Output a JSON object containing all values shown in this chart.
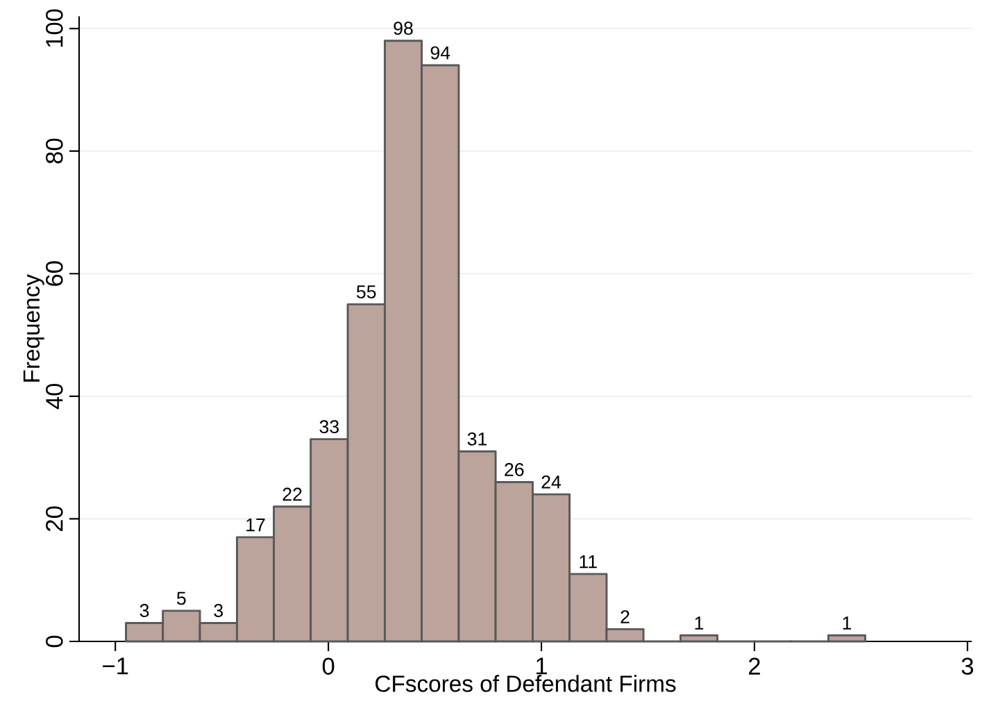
{
  "chart_data": {
    "type": "histogram",
    "xlabel": "CFscores of Defendant Firms",
    "ylabel": "Frequency",
    "bins": [
      -0.95,
      -0.777,
      -0.603,
      -0.429,
      -0.256,
      -0.083,
      0.091,
      0.265,
      0.438,
      0.612,
      0.785,
      0.959,
      1.132,
      1.306,
      1.479,
      1.653,
      1.826,
      2.0,
      2.173,
      2.347,
      2.52
    ],
    "values": [
      3,
      5,
      3,
      17,
      22,
      33,
      55,
      98,
      94,
      31,
      26,
      24,
      11,
      2,
      0,
      1,
      0,
      0,
      0,
      1
    ],
    "value_labels": [
      "3",
      "5",
      "3",
      "17",
      "22",
      "33",
      "55",
      "98",
      "94",
      "31",
      "26",
      "24",
      "11",
      "2",
      null,
      "1",
      null,
      null,
      null,
      "1"
    ],
    "color": "#bca39b",
    "xlim": [
      -1.17,
      3.02
    ],
    "ylim": [
      0,
      102
    ],
    "xticks": [
      {
        "value": -1,
        "label": "−1"
      },
      0,
      1,
      2,
      3
    ],
    "yticks": [
      0,
      20,
      40,
      60,
      80,
      100
    ],
    "grid": "y"
  }
}
